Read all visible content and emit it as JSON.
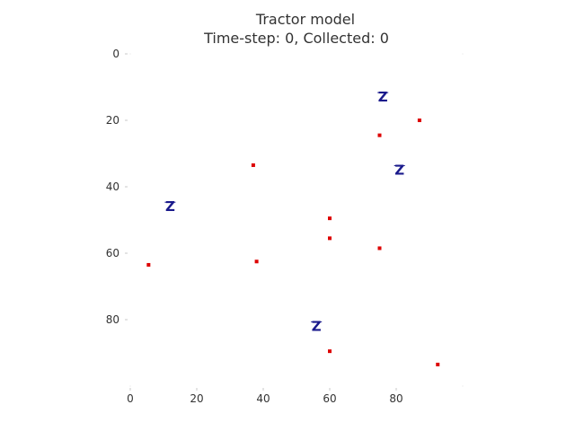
{
  "chart_data": {
    "type": "scatter",
    "title": "Tractor model",
    "subtitle": "Time-step: 0, Collected: 0",
    "xlabel": "",
    "ylabel": "",
    "xlim": [
      0,
      100
    ],
    "ylim": [
      100,
      0
    ],
    "y_inverted": true,
    "grid": false,
    "x_ticks": [
      0,
      20,
      40,
      60,
      80
    ],
    "y_ticks": [
      0,
      20,
      40,
      60,
      80
    ],
    "series": [
      {
        "marker": "red-square",
        "color": "#dd0000",
        "points": [
          {
            "x": 87,
            "y": 20
          },
          {
            "x": 75,
            "y": 24.5
          },
          {
            "x": 37,
            "y": 33.5
          },
          {
            "x": 60,
            "y": 49.5
          },
          {
            "x": 60,
            "y": 55.5
          },
          {
            "x": 75,
            "y": 58.5
          },
          {
            "x": 38,
            "y": 62.5
          },
          {
            "x": 5.5,
            "y": 63.5
          },
          {
            "x": 60,
            "y": 89.5
          },
          {
            "x": 92.5,
            "y": 93.5
          }
        ]
      },
      {
        "marker": "tractor-icon",
        "color": "#1a1a8c",
        "glyph": "Z",
        "points": [
          {
            "x": 76,
            "y": 13
          },
          {
            "x": 81,
            "y": 35
          },
          {
            "x": 12,
            "y": 46
          },
          {
            "x": 56,
            "y": 82
          }
        ]
      }
    ]
  }
}
